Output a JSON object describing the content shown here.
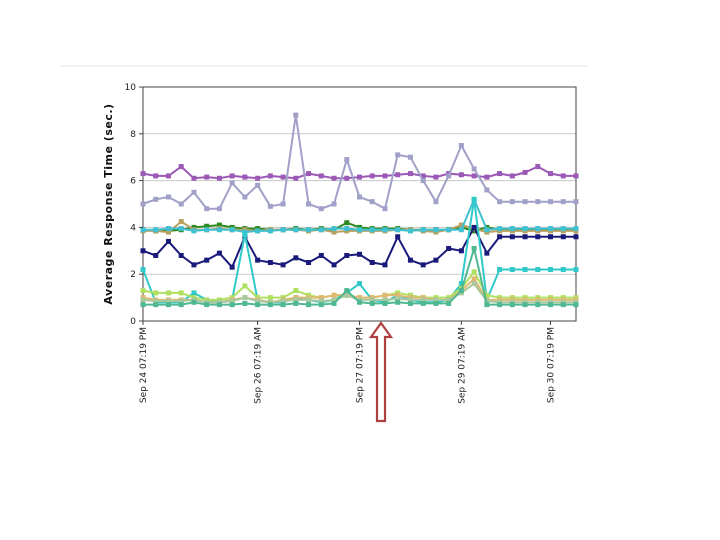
{
  "chart_data": {
    "type": "line",
    "title": "",
    "xlabel": "",
    "ylabel": "Average Response Time (sec.)",
    "ylim": [
      0,
      10
    ],
    "yticks": [
      "0",
      "2",
      "4",
      "6",
      "8",
      "10"
    ],
    "grid": true,
    "legend": "none",
    "x_tick_labels": [
      "Sep 24 07:19 PM",
      "Sep 26 07:19 AM",
      "Sep 27 07:19 PM",
      "Sep 29 07:19 AM",
      "Sep 30 07:19 PM"
    ],
    "x_tick_index": [
      0,
      9,
      17,
      25,
      32
    ],
    "annotation": "arrow-up",
    "series": [
      {
        "color": "#9b59b6",
        "values": [
          6.3,
          6.2,
          6.2,
          6.6,
          6.1,
          6.15,
          6.1,
          6.2,
          6.15,
          6.1,
          6.2,
          6.15,
          6.1,
          6.3,
          6.2,
          6.1,
          6.1,
          6.15,
          6.2,
          6.2,
          6.25,
          6.3,
          6.2,
          6.15,
          6.3,
          6.25,
          6.2,
          6.15,
          6.3,
          6.2,
          6.35,
          6.6,
          6.3,
          6.2,
          6.2
        ]
      },
      {
        "color": "#a0a0c8",
        "values": [
          5.0,
          5.2,
          5.3,
          5.0,
          5.5,
          4.8,
          4.8,
          5.9,
          5.3,
          5.8,
          4.9,
          5.0,
          8.8,
          5.0,
          4.8,
          5.0,
          6.9,
          5.3,
          5.1,
          4.8,
          7.1,
          7.0,
          6.0,
          5.1,
          6.2,
          7.5,
          6.5,
          5.6,
          5.1,
          5.1,
          5.1,
          5.1,
          5.1,
          5.1,
          5.1
        ]
      },
      {
        "color": "#2e8b22",
        "values": [
          3.9,
          3.85,
          3.85,
          3.9,
          4.0,
          4.05,
          4.1,
          4.0,
          3.95,
          3.95,
          3.9,
          3.9,
          3.95,
          3.9,
          3.95,
          3.9,
          4.2,
          4.0,
          3.95,
          3.95,
          3.95,
          3.9,
          3.9,
          3.9,
          3.9,
          4.0,
          3.85,
          4.0,
          3.9,
          3.9,
          3.9,
          3.9,
          3.9,
          3.9,
          3.9
        ]
      },
      {
        "color": "#b8a060",
        "values": [
          3.85,
          3.85,
          3.8,
          4.25,
          3.9,
          3.9,
          3.95,
          3.9,
          3.9,
          3.85,
          3.9,
          3.9,
          3.9,
          3.85,
          3.9,
          3.8,
          3.85,
          3.85,
          3.85,
          3.85,
          3.9,
          3.9,
          3.85,
          3.8,
          3.9,
          4.1,
          3.95,
          3.8,
          3.85,
          3.85,
          3.85,
          3.85,
          3.85,
          3.85,
          3.85
        ]
      },
      {
        "color": "#40c0d0",
        "values": [
          3.9,
          3.9,
          3.95,
          3.95,
          3.85,
          3.9,
          3.9,
          3.9,
          3.8,
          3.85,
          3.85,
          3.9,
          3.9,
          3.9,
          3.9,
          3.95,
          3.95,
          3.9,
          3.9,
          3.9,
          3.9,
          3.85,
          3.9,
          3.9,
          3.9,
          3.9,
          5.2,
          3.9,
          3.95,
          3.95,
          3.95,
          3.95,
          3.95,
          3.95,
          3.95
        ]
      },
      {
        "color": "#1a1a7a",
        "values": [
          3.0,
          2.8,
          3.4,
          2.8,
          2.4,
          2.6,
          2.9,
          2.3,
          3.6,
          2.6,
          2.5,
          2.4,
          2.7,
          2.5,
          2.8,
          2.4,
          2.8,
          2.85,
          2.5,
          2.4,
          3.6,
          2.6,
          2.4,
          2.6,
          3.1,
          3.0,
          4.0,
          2.9,
          3.6,
          3.6,
          3.6,
          3.6,
          3.6,
          3.6,
          3.6
        ]
      },
      {
        "color": "#30c8c8",
        "values": [
          2.2,
          0.8,
          0.8,
          0.8,
          1.2,
          0.9,
          0.8,
          0.9,
          3.7,
          0.9,
          0.8,
          0.8,
          1.0,
          0.9,
          0.8,
          0.9,
          1.2,
          1.6,
          0.9,
          0.8,
          1.1,
          0.9,
          0.8,
          0.8,
          0.9,
          1.6,
          5.2,
          0.9,
          2.2,
          2.2,
          2.2,
          2.2,
          2.2,
          2.2,
          2.2
        ]
      },
      {
        "color": "#b0e060",
        "values": [
          1.3,
          1.2,
          1.2,
          1.2,
          1.0,
          0.9,
          0.9,
          1.0,
          1.5,
          1.0,
          1.0,
          1.0,
          1.3,
          1.1,
          1.0,
          1.1,
          1.1,
          1.0,
          1.0,
          1.1,
          1.2,
          1.1,
          1.0,
          1.0,
          1.0,
          1.4,
          2.1,
          1.1,
          1.0,
          1.0,
          1.0,
          1.0,
          1.0,
          1.0,
          1.0
        ]
      },
      {
        "color": "#e0b870",
        "values": [
          1.0,
          0.9,
          0.9,
          0.9,
          0.9,
          0.8,
          0.8,
          0.9,
          1.0,
          0.9,
          0.8,
          0.9,
          1.0,
          1.0,
          1.0,
          1.1,
          1.1,
          1.0,
          1.0,
          1.1,
          1.1,
          1.0,
          1.0,
          0.9,
          0.9,
          1.3,
          1.8,
          0.9,
          0.9,
          0.9,
          0.9,
          0.9,
          0.9,
          0.9,
          0.9
        ]
      },
      {
        "color": "#a8c8a0",
        "values": [
          0.9,
          0.85,
          0.85,
          0.85,
          0.9,
          0.8,
          0.8,
          0.85,
          1.0,
          0.85,
          0.8,
          0.85,
          0.9,
          0.9,
          0.85,
          0.9,
          1.1,
          0.9,
          0.9,
          0.9,
          0.95,
          0.9,
          0.9,
          0.9,
          0.9,
          1.2,
          1.6,
          0.85,
          0.8,
          0.8,
          0.8,
          0.8,
          0.8,
          0.8,
          0.8
        ]
      },
      {
        "color": "#50b890",
        "values": [
          0.7,
          0.7,
          0.7,
          0.7,
          0.8,
          0.7,
          0.7,
          0.7,
          0.75,
          0.7,
          0.7,
          0.7,
          0.75,
          0.7,
          0.7,
          0.75,
          1.3,
          0.8,
          0.75,
          0.75,
          0.8,
          0.75,
          0.75,
          0.75,
          0.75,
          1.3,
          3.1,
          0.7,
          0.7,
          0.7,
          0.7,
          0.7,
          0.7,
          0.7,
          0.7
        ]
      }
    ]
  }
}
